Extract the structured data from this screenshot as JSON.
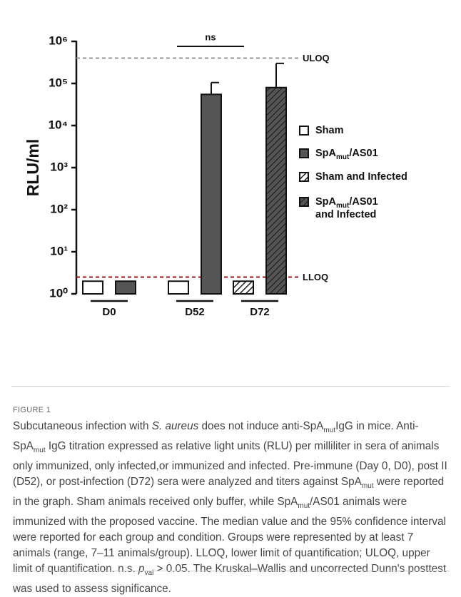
{
  "chart_data": {
    "type": "bar",
    "log_scale": true,
    "y_label": "RLU/ml",
    "categories": [
      "D0",
      "D52",
      "D72"
    ],
    "series": [
      {
        "name": "Sham",
        "color": "#ffffff",
        "hatch": false,
        "values": [
          2,
          2,
          null
        ],
        "errors": [
          null,
          null,
          null
        ]
      },
      {
        "name": "SpAmut/AS01",
        "color": "#555555",
        "hatch": false,
        "values": [
          2,
          55000,
          null
        ],
        "errors": [
          null,
          50000,
          null
        ]
      },
      {
        "name": "Sham and Infected",
        "color": "#ffffff",
        "hatch": true,
        "values": [
          null,
          null,
          2
        ],
        "errors": [
          null,
          null,
          null
        ]
      },
      {
        "name": "SpAmut/AS01 and Infected",
        "color": "#555555",
        "hatch": true,
        "values": [
          null,
          null,
          80000
        ],
        "errors": [
          null,
          null,
          220000
        ]
      }
    ],
    "ylim": [
      1,
      1000000
    ],
    "yticks": [
      {
        "value": 1,
        "label": "10⁰"
      },
      {
        "value": 10,
        "label": "10¹"
      },
      {
        "value": 100,
        "label": "10²"
      },
      {
        "value": 1000,
        "label": "10³"
      },
      {
        "value": 10000,
        "label": "10⁴"
      },
      {
        "value": 100000,
        "label": "10⁵"
      },
      {
        "value": 1000000,
        "label": "10⁶"
      }
    ],
    "reference_lines": [
      {
        "value": 400000,
        "label": "ULOQ",
        "color": "#999999"
      },
      {
        "value": 2.5,
        "label": "LLOQ",
        "color": "#a31515"
      }
    ],
    "annotations": [
      "ns"
    ],
    "legend": "right"
  },
  "figure": {
    "label": "FIGURE 1",
    "caption": "Subcutaneous infection with S. aureus does not induce anti-SpAmutIgG in mice. Anti-SpAmut IgG titration expressed as relative light units (RLU) per milliliter in sera of animals only immunized, only infected,or immunized and infected. Pre-immune (Day 0, D0), post II (D52), or post-infection (D72) sera were analyzed and titers against SpAmut were reported in the graph. Sham animals received only buffer, while SpAmut/AS01 animals were immunized with the proposed vaccine. The median value and the 95% confidence interval were reported for each group and condition. Groups were represented by at least 7 animals (range, 7–11 animals/group). LLOQ, lower limit of quantification; ULOQ, upper limit of quantification. n.s. pval > 0.05. The Kruskal–Wallis and uncorrected Dunn's posttest was used to assess significance."
  }
}
